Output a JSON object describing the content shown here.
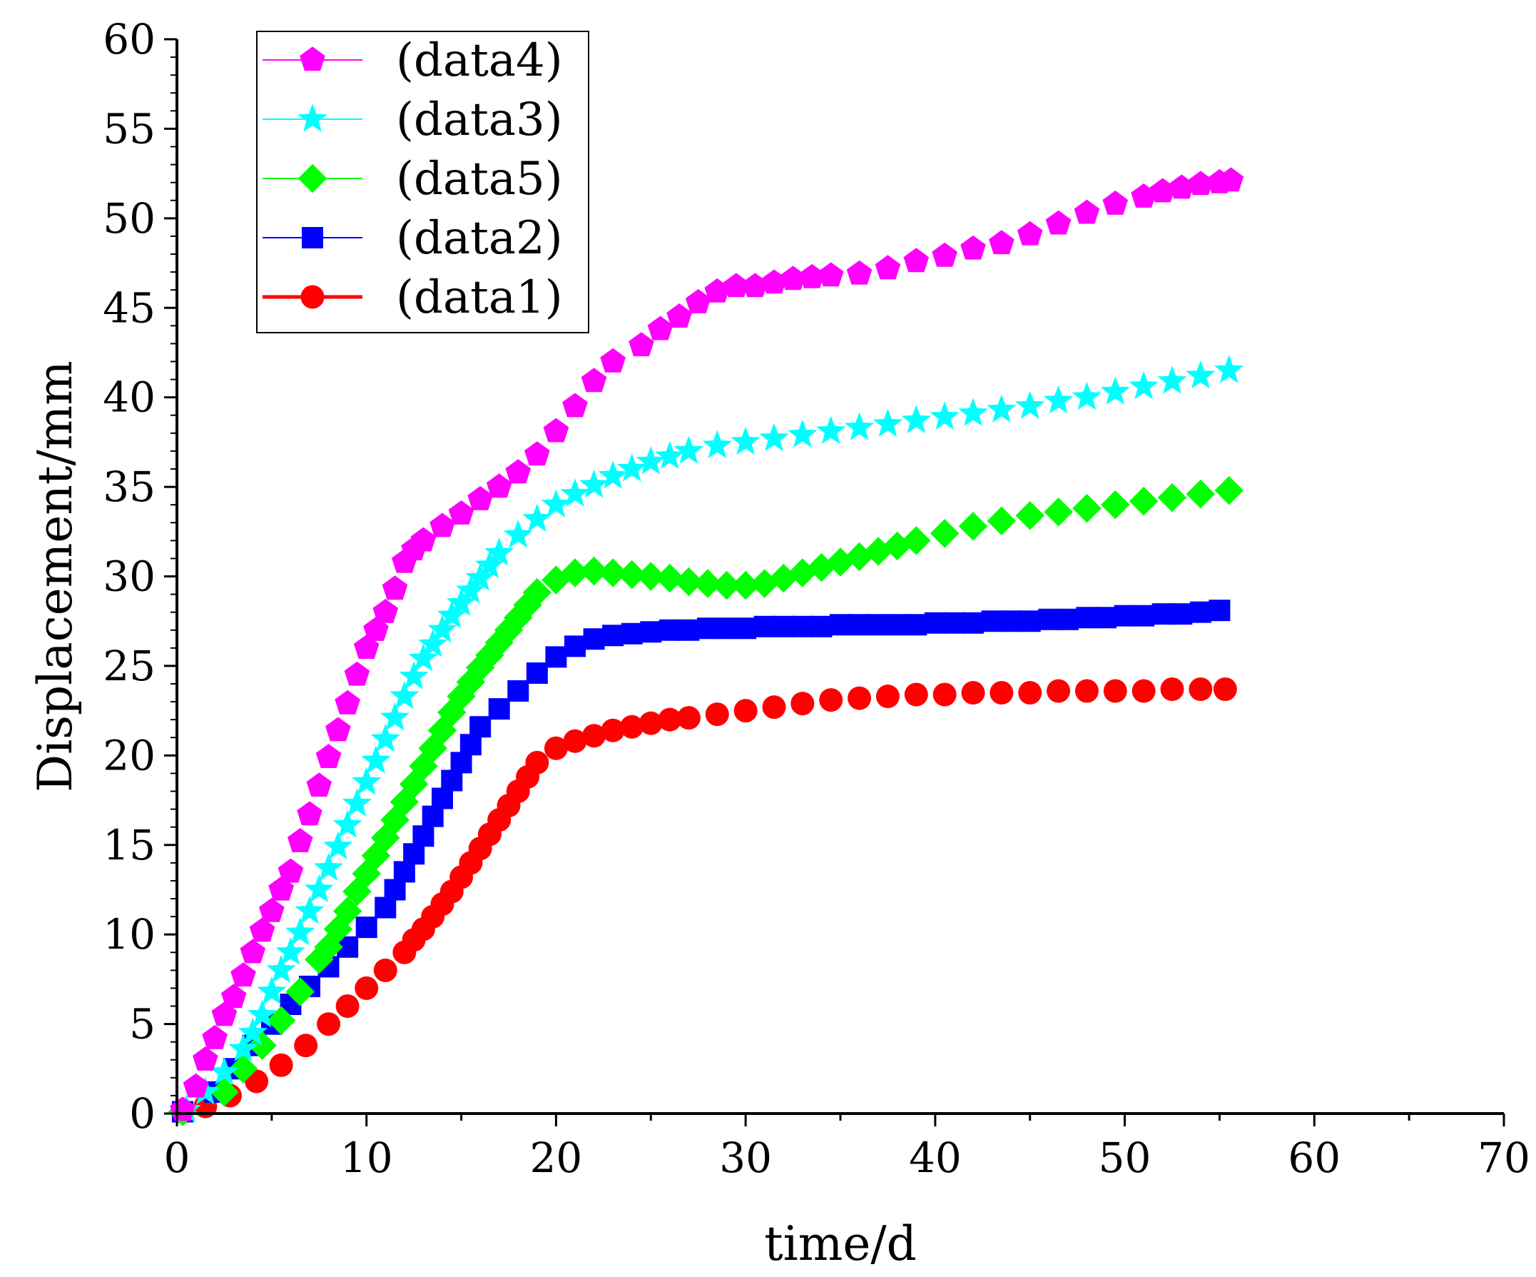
{
  "chart_data": {
    "type": "scatter",
    "title": "",
    "xlabel": "time/d",
    "ylabel": "Displacement/mm",
    "xlim": [
      0,
      70
    ],
    "ylim": [
      0,
      60
    ],
    "xticks": [
      "0",
      "10",
      "20",
      "30",
      "40",
      "50",
      "60",
      "70"
    ],
    "yticks": [
      "0",
      "5",
      "10",
      "15",
      "20",
      "25",
      "30",
      "35",
      "40",
      "45",
      "50",
      "55",
      "60"
    ],
    "grid": false,
    "legend_position": "top-left",
    "series": [
      {
        "name": "(data4)",
        "marker": "pentagon",
        "color": "#ff00ff",
        "x": [
          0.3,
          1,
          1.5,
          2,
          2.5,
          3,
          3.5,
          4,
          4.5,
          5,
          5.5,
          6,
          6.5,
          7,
          7.5,
          8,
          8.5,
          9,
          9.5,
          10,
          10.5,
          11,
          11.5,
          12,
          12.5,
          13,
          14,
          15,
          16,
          17,
          18,
          19,
          20,
          21,
          22,
          23,
          24.5,
          25.5,
          26.5,
          27.5,
          28.5,
          29.5,
          30.5,
          31.5,
          32.5,
          33.5,
          34.5,
          36,
          37.5,
          39,
          40.5,
          42,
          43.5,
          45,
          46.5,
          48,
          49.5,
          51,
          52,
          53,
          54,
          55,
          55.6
        ],
        "y": [
          0.2,
          1.5,
          3,
          4.2,
          5.5,
          6.5,
          7.7,
          9,
          10.2,
          11.3,
          12.5,
          13.5,
          15.2,
          16.7,
          18.3,
          19.9,
          21.4,
          22.9,
          24.5,
          26,
          27,
          28,
          29.3,
          30.8,
          31.5,
          32,
          32.8,
          33.5,
          34.3,
          35,
          35.8,
          36.8,
          38.1,
          39.5,
          40.9,
          42,
          42.9,
          43.8,
          44.5,
          45.3,
          45.9,
          46.2,
          46.2,
          46.4,
          46.6,
          46.7,
          46.8,
          46.9,
          47.2,
          47.6,
          47.9,
          48.3,
          48.6,
          49.1,
          49.7,
          50.3,
          50.8,
          51.2,
          51.5,
          51.7,
          51.9,
          52,
          52.1
        ]
      },
      {
        "name": "(data3)",
        "marker": "star",
        "color": "#00ffff",
        "x": [
          0.5,
          1.5,
          2.5,
          3.5,
          4,
          4.5,
          5,
          5.5,
          6,
          6.5,
          7,
          7.5,
          8,
          8.5,
          9,
          9.5,
          10,
          10.5,
          11,
          11.5,
          12,
          12.5,
          13,
          13.5,
          14,
          14.5,
          15,
          15.5,
          16,
          16.5,
          17,
          18,
          19,
          20,
          21,
          22,
          23,
          24,
          25,
          26,
          27,
          28.5,
          30,
          31.5,
          33,
          34.5,
          36,
          37.5,
          39,
          40.5,
          42,
          43.5,
          45,
          46.5,
          48,
          49.5,
          51,
          52.5,
          54,
          55.5
        ],
        "y": [
          0.2,
          1.2,
          2.3,
          3.6,
          4.5,
          5.5,
          6.8,
          8,
          9,
          10.1,
          11.3,
          12.5,
          13.7,
          14.9,
          16.1,
          17.3,
          18.5,
          19.7,
          20.9,
          22.1,
          23.3,
          24.4,
          25.4,
          26.2,
          27,
          27.8,
          28.5,
          29.2,
          29.9,
          30.6,
          31.3,
          32.3,
          33.2,
          34,
          34.6,
          35.1,
          35.6,
          36,
          36.4,
          36.7,
          37,
          37.3,
          37.5,
          37.7,
          37.9,
          38.1,
          38.3,
          38.5,
          38.7,
          38.9,
          39.1,
          39.3,
          39.5,
          39.8,
          40,
          40.3,
          40.6,
          40.9,
          41.2,
          41.5
        ]
      },
      {
        "name": "(data5)",
        "marker": "diamond",
        "color": "#00ff00",
        "x": [
          0.3,
          2.5,
          3.5,
          4.5,
          5.5,
          6.5,
          7.5,
          8,
          8.5,
          9,
          9.5,
          10,
          10.5,
          11,
          11.5,
          12,
          12.5,
          13,
          13.5,
          14,
          14.5,
          15,
          15.5,
          16,
          16.5,
          17,
          17.5,
          18,
          18.5,
          19,
          20,
          21,
          22,
          23,
          24,
          25,
          26,
          27,
          28,
          29,
          30,
          31,
          32,
          33,
          34,
          35,
          36,
          37,
          38,
          39,
          40.5,
          42,
          43.5,
          45,
          46.5,
          48,
          49.5,
          51,
          52.5,
          54,
          55.5
        ],
        "y": [
          0.1,
          1.2,
          2.5,
          3.8,
          5.2,
          6.8,
          8.6,
          9.3,
          10.3,
          11.3,
          12.4,
          13.4,
          14.4,
          15.4,
          16.4,
          17.4,
          18.4,
          19.4,
          20.4,
          21.4,
          22.4,
          23.3,
          24.1,
          24.9,
          25.6,
          26.3,
          27,
          27.7,
          28.4,
          29.1,
          29.8,
          30.2,
          30.3,
          30.2,
          30.1,
          30,
          29.9,
          29.7,
          29.6,
          29.5,
          29.5,
          29.6,
          29.9,
          30.2,
          30.5,
          30.8,
          31.1,
          31.4,
          31.7,
          32,
          32.4,
          32.8,
          33.1,
          33.4,
          33.6,
          33.8,
          34,
          34.2,
          34.4,
          34.6,
          34.8
        ]
      },
      {
        "name": "(data2)",
        "marker": "square",
        "color": "#0000ff",
        "x": [
          0.3,
          2,
          3,
          4,
          5,
          6,
          7,
          8,
          9,
          10,
          11,
          11.5,
          12,
          12.5,
          13,
          13.5,
          14,
          14.5,
          15,
          15.5,
          16,
          17,
          18,
          19,
          20,
          21,
          22,
          23,
          24,
          25,
          26,
          27,
          28,
          29,
          30,
          31,
          32,
          33,
          34,
          35,
          36,
          37,
          38,
          39,
          40,
          41,
          42,
          43,
          44,
          45,
          46,
          47,
          48,
          49,
          50,
          51,
          52,
          53,
          54,
          55
        ],
        "y": [
          0.1,
          1.2,
          2.5,
          3.8,
          5,
          6.1,
          7.1,
          8.2,
          9.3,
          10.4,
          11.5,
          12.5,
          13.5,
          14.5,
          15.5,
          16.6,
          17.6,
          18.6,
          19.6,
          20.6,
          21.6,
          22.6,
          23.6,
          24.6,
          25.5,
          26.1,
          26.5,
          26.7,
          26.8,
          26.9,
          27,
          27,
          27.1,
          27.1,
          27.1,
          27.2,
          27.2,
          27.2,
          27.2,
          27.3,
          27.3,
          27.3,
          27.3,
          27.3,
          27.4,
          27.4,
          27.4,
          27.5,
          27.5,
          27.5,
          27.6,
          27.6,
          27.7,
          27.7,
          27.8,
          27.8,
          27.9,
          27.9,
          28,
          28.1
        ]
      },
      {
        "name": "(data1)",
        "marker": "circle",
        "color": "#ff0000",
        "x": [
          0.3,
          1.5,
          2.8,
          4.2,
          5.5,
          6.8,
          8,
          9,
          10,
          11,
          12,
          12.5,
          13,
          13.5,
          14,
          14.5,
          15,
          15.5,
          16,
          16.5,
          17,
          17.5,
          18,
          18.5,
          19,
          20,
          21,
          22,
          23,
          24,
          25,
          26,
          27,
          28.5,
          30,
          31.5,
          33,
          34.5,
          36,
          37.5,
          39,
          40.5,
          42,
          43.5,
          45,
          46.5,
          48,
          49.5,
          51,
          52.5,
          54,
          55.3
        ],
        "y": [
          0.1,
          0.4,
          1,
          1.8,
          2.7,
          3.8,
          5,
          6,
          7,
          8,
          9,
          9.7,
          10.3,
          11,
          11.7,
          12.4,
          13.2,
          14,
          14.8,
          15.6,
          16.4,
          17.2,
          18,
          18.8,
          19.6,
          20.4,
          20.8,
          21.1,
          21.4,
          21.6,
          21.8,
          22,
          22.1,
          22.3,
          22.5,
          22.7,
          22.9,
          23.1,
          23.2,
          23.3,
          23.4,
          23.4,
          23.5,
          23.5,
          23.5,
          23.6,
          23.6,
          23.6,
          23.6,
          23.7,
          23.7,
          23.7
        ]
      }
    ]
  }
}
